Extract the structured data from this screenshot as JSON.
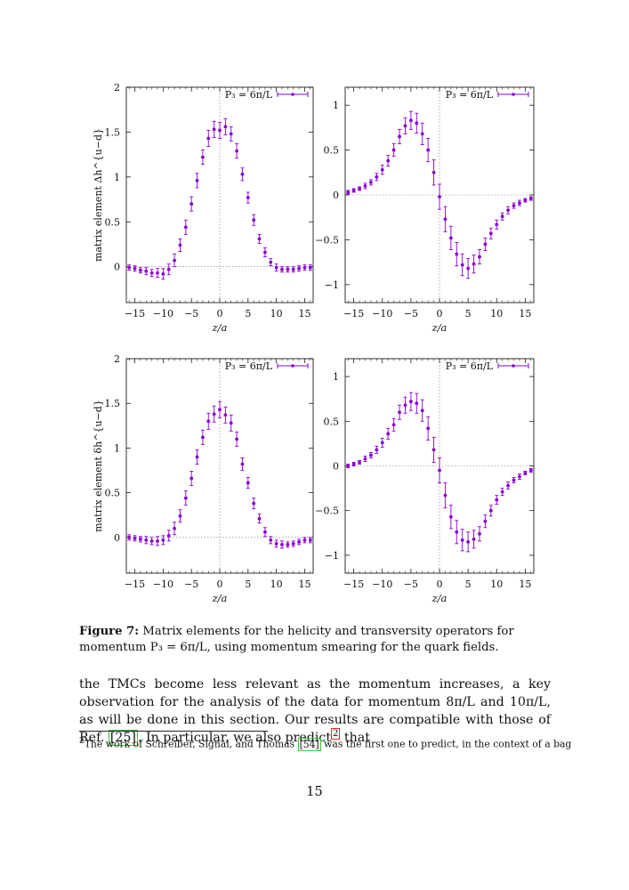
{
  "figure": {
    "series_color": "#8a00d4",
    "legend_label": "P₃ = 6π/L",
    "xlabel": "z/a",
    "ylabel_top": "matrix element Δh^{u−d}",
    "ylabel_bottom": "matrix element δh^{u−d}"
  },
  "chart_data": [
    {
      "type": "scatter",
      "panel": "top-left",
      "legend": "P₃ = 6π/L",
      "legend_position": "top-right",
      "xlabel": "z/a",
      "ylabel": "matrix element Δh^{u−d}",
      "xlim": [
        -16.5,
        16.5
      ],
      "ylim": [
        -0.4,
        2
      ],
      "xticks": [
        -15,
        -10,
        -5,
        0,
        5,
        10,
        15
      ],
      "yticks": [
        0,
        0.5,
        1,
        1.5,
        2
      ],
      "ytick_labels": [
        "0",
        "0.5",
        "1",
        "1.5",
        "2"
      ],
      "x": [
        -16,
        -15,
        -14,
        -13,
        -12,
        -11,
        -10,
        -9,
        -8,
        -7,
        -6,
        -5,
        -4,
        -3,
        -2,
        -1,
        0,
        1,
        2,
        3,
        4,
        5,
        6,
        7,
        8,
        9,
        10,
        11,
        12,
        13,
        14,
        15,
        16
      ],
      "y": [
        -0.01,
        -0.02,
        -0.04,
        -0.05,
        -0.07,
        -0.07,
        -0.08,
        -0.03,
        0.07,
        0.24,
        0.44,
        0.7,
        0.96,
        1.22,
        1.43,
        1.53,
        1.52,
        1.56,
        1.48,
        1.29,
        1.03,
        0.77,
        0.52,
        0.31,
        0.16,
        0.05,
        -0.01,
        -0.03,
        -0.03,
        -0.03,
        -0.02,
        -0.01,
        -0.01
      ],
      "yerr": [
        0.03,
        0.03,
        0.03,
        0.04,
        0.04,
        0.05,
        0.06,
        0.06,
        0.07,
        0.07,
        0.08,
        0.08,
        0.08,
        0.08,
        0.09,
        0.09,
        0.09,
        0.09,
        0.08,
        0.08,
        0.07,
        0.06,
        0.06,
        0.05,
        0.05,
        0.04,
        0.04,
        0.03,
        0.03,
        0.03,
        0.03,
        0.03,
        0.03
      ]
    },
    {
      "type": "scatter",
      "panel": "top-right",
      "legend": "P₃ = 6π/L",
      "legend_position": "top-right",
      "xlabel": "z/a",
      "xlim": [
        -16.5,
        16.5
      ],
      "ylim": [
        -1.2,
        1.2
      ],
      "xticks": [
        -15,
        -10,
        -5,
        0,
        5,
        10,
        15
      ],
      "yticks": [
        -1,
        -0.5,
        0,
        0.5,
        1
      ],
      "ytick_labels": [
        "−1",
        "−0.5",
        "0",
        "0.5",
        "1"
      ],
      "x": [
        -16,
        -15,
        -14,
        -13,
        -12,
        -11,
        -10,
        -9,
        -8,
        -7,
        -6,
        -5,
        -4,
        -3,
        -2,
        -1,
        0,
        1,
        2,
        3,
        4,
        5,
        6,
        7,
        8,
        9,
        10,
        11,
        12,
        13,
        14,
        15,
        16
      ],
      "y": [
        0.03,
        0.05,
        0.07,
        0.1,
        0.14,
        0.2,
        0.28,
        0.38,
        0.5,
        0.65,
        0.77,
        0.83,
        0.8,
        0.68,
        0.5,
        0.25,
        -0.02,
        -0.27,
        -0.48,
        -0.66,
        -0.78,
        -0.82,
        -0.77,
        -0.69,
        -0.55,
        -0.43,
        -0.33,
        -0.24,
        -0.17,
        -0.12,
        -0.09,
        -0.06,
        -0.04
      ],
      "yerr": [
        0.02,
        0.02,
        0.02,
        0.03,
        0.03,
        0.04,
        0.05,
        0.06,
        0.07,
        0.08,
        0.09,
        0.1,
        0.11,
        0.12,
        0.13,
        0.14,
        0.14,
        0.14,
        0.13,
        0.13,
        0.12,
        0.11,
        0.1,
        0.08,
        0.07,
        0.06,
        0.05,
        0.04,
        0.04,
        0.03,
        0.03,
        0.02,
        0.02
      ]
    },
    {
      "type": "scatter",
      "panel": "bottom-left",
      "legend": "P₃ = 6π/L",
      "legend_position": "top-right",
      "xlabel": "z/a",
      "ylabel": "matrix element δh^{u−d}",
      "xlim": [
        -16.5,
        16.5
      ],
      "ylim": [
        -0.4,
        2
      ],
      "xticks": [
        -15,
        -10,
        -5,
        0,
        5,
        10,
        15
      ],
      "yticks": [
        0,
        0.5,
        1,
        1.5,
        2
      ],
      "ytick_labels": [
        "0",
        "0.5",
        "1",
        "1.5",
        "2"
      ],
      "x": [
        -16,
        -15,
        -14,
        -13,
        -12,
        -11,
        -10,
        -9,
        -8,
        -7,
        -6,
        -5,
        -4,
        -3,
        -2,
        -1,
        0,
        1,
        2,
        3,
        4,
        5,
        6,
        7,
        8,
        9,
        10,
        11,
        12,
        13,
        14,
        15,
        16
      ],
      "y": [
        0,
        -0.01,
        -0.02,
        -0.03,
        -0.04,
        -0.04,
        -0.03,
        0.02,
        0.1,
        0.24,
        0.44,
        0.66,
        0.9,
        1.12,
        1.3,
        1.38,
        1.43,
        1.37,
        1.28,
        1.1,
        0.82,
        0.61,
        0.38,
        0.21,
        0.06,
        -0.03,
        -0.07,
        -0.08,
        -0.08,
        -0.07,
        -0.05,
        -0.03,
        -0.03
      ],
      "yerr": [
        0.03,
        0.03,
        0.03,
        0.04,
        0.04,
        0.05,
        0.05,
        0.06,
        0.07,
        0.07,
        0.08,
        0.08,
        0.08,
        0.08,
        0.09,
        0.09,
        0.09,
        0.09,
        0.09,
        0.08,
        0.07,
        0.06,
        0.06,
        0.05,
        0.05,
        0.04,
        0.04,
        0.04,
        0.03,
        0.03,
        0.03,
        0.03,
        0.03
      ]
    },
    {
      "type": "scatter",
      "panel": "bottom-right",
      "legend": "P₃ = 6π/L",
      "legend_position": "top-right",
      "xlabel": "z/a",
      "xlim": [
        -16.5,
        16.5
      ],
      "ylim": [
        -1.2,
        1.2
      ],
      "xticks": [
        -15,
        -10,
        -5,
        0,
        5,
        10,
        15
      ],
      "yticks": [
        -1,
        -0.5,
        0,
        0.5,
        1
      ],
      "ytick_labels": [
        "−1",
        "−0.5",
        "0",
        "0.5",
        "1"
      ],
      "x": [
        -16,
        -15,
        -14,
        -13,
        -12,
        -11,
        -10,
        -9,
        -8,
        -7,
        -6,
        -5,
        -4,
        -3,
        -2,
        -1,
        0,
        1,
        2,
        3,
        4,
        5,
        6,
        7,
        8,
        9,
        10,
        11,
        12,
        13,
        14,
        15,
        16
      ],
      "y": [
        0,
        0.02,
        0.04,
        0.08,
        0.12,
        0.18,
        0.26,
        0.36,
        0.46,
        0.6,
        0.68,
        0.72,
        0.7,
        0.62,
        0.42,
        0.18,
        -0.05,
        -0.33,
        -0.57,
        -0.74,
        -0.83,
        -0.85,
        -0.82,
        -0.76,
        -0.62,
        -0.5,
        -0.38,
        -0.29,
        -0.22,
        -0.16,
        -0.12,
        -0.08,
        -0.05
      ],
      "yerr": [
        0.02,
        0.02,
        0.02,
        0.03,
        0.03,
        0.04,
        0.05,
        0.06,
        0.07,
        0.08,
        0.09,
        0.1,
        0.11,
        0.12,
        0.13,
        0.14,
        0.14,
        0.14,
        0.13,
        0.13,
        0.12,
        0.11,
        0.1,
        0.08,
        0.07,
        0.06,
        0.05,
        0.04,
        0.04,
        0.03,
        0.03,
        0.02,
        0.02
      ]
    }
  ],
  "caption": {
    "label": "Figure 7:",
    "text": "Matrix elements for the helicity and transversity operators for momentum P₃ = 6π/L, using momentum smearing for the quark fields."
  },
  "body": {
    "part1": "the TMCs become less relevant as the momentum increases, a key observation for the analysis of the data for momentum 8π/L and 10π/L, as will be done in this section. Our results are compatible with those of Ref. ",
    "cite1": "[25]",
    "part2": ". In particular, we also predict",
    "fnref": "2",
    "part3": " that"
  },
  "footnote": {
    "mark": "2",
    "part1": "The work of Schreiber, Signal, and Thomas ",
    "cite": "[54]",
    "part2": " was the first one to predict, in the context of a bag"
  },
  "page_number": "15"
}
